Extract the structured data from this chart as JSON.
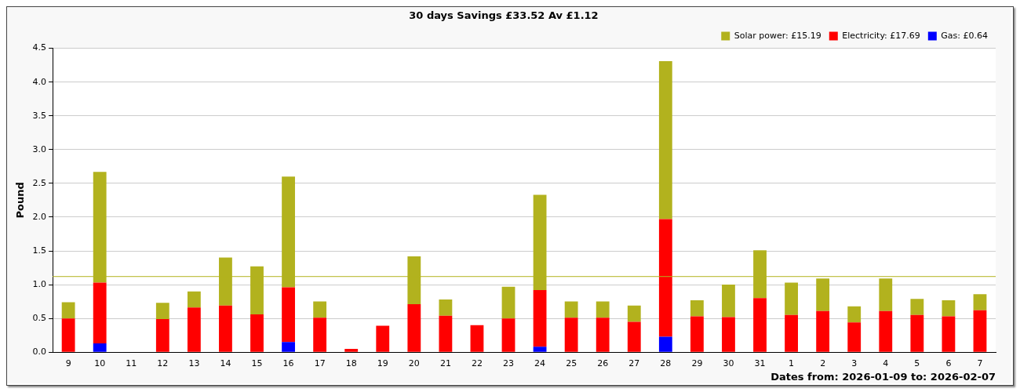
{
  "chart_data": {
    "type": "bar",
    "title": "30 days Savings £33.52 Av £1.12",
    "xlabel": "Dates from: 2026-01-09 to: 2026-02-07",
    "ylabel": "Pound",
    "categories": [
      "9",
      "10",
      "11",
      "12",
      "13",
      "14",
      "15",
      "16",
      "17",
      "18",
      "19",
      "20",
      "21",
      "22",
      "23",
      "24",
      "25",
      "26",
      "27",
      "28",
      "29",
      "30",
      "31",
      "1",
      "2",
      "3",
      "4",
      "5",
      "6",
      "7"
    ],
    "stacked": true,
    "series": [
      {
        "name": "Gas: £0.64",
        "color": "#0000ff",
        "values": [
          0,
          0.13,
          0,
          0,
          0,
          0,
          0,
          0.15,
          0,
          0,
          0,
          0,
          0,
          0,
          0,
          0.08,
          0,
          0,
          0,
          0.23,
          0,
          0,
          0,
          0,
          0,
          0,
          0,
          0,
          0,
          0
        ]
      },
      {
        "name": "Electricity: £17.69",
        "color": "#ff0000",
        "values": [
          0.5,
          0.9,
          0,
          0.49,
          0.66,
          0.69,
          0.56,
          0.81,
          0.51,
          0.05,
          0.39,
          0.71,
          0.54,
          0.4,
          0.5,
          0.84,
          0.51,
          0.51,
          0.45,
          1.74,
          0.53,
          0.52,
          0.8,
          0.55,
          0.61,
          0.44,
          0.61,
          0.55,
          0.53,
          0.62
        ]
      },
      {
        "name": "Solar power: £15.19",
        "color": "#b2b21e",
        "values": [
          0.24,
          1.64,
          0,
          0.24,
          0.24,
          0.71,
          0.71,
          1.64,
          0.24,
          0,
          0,
          0.71,
          0.24,
          0,
          0.47,
          1.41,
          0.24,
          0.24,
          0.24,
          2.34,
          0.24,
          0.48,
          0.71,
          0.48,
          0.48,
          0.24,
          0.48,
          0.24,
          0.24,
          0.24
        ]
      }
    ],
    "ylim": [
      0,
      4.5
    ],
    "yticks": [
      {
        "value": 0,
        "label": "0.0"
      },
      {
        "value": 0.5,
        "label": "0.5"
      },
      {
        "value": 1,
        "label": "1.0"
      },
      {
        "value": 1.5,
        "label": "1.5"
      },
      {
        "value": 2,
        "label": "2.0"
      },
      {
        "value": 2.5,
        "label": "2.5"
      },
      {
        "value": 3,
        "label": "3.0"
      },
      {
        "value": 3.5,
        "label": "3.5"
      },
      {
        "value": 4,
        "label": "4.0"
      },
      {
        "value": 4.5,
        "label": "4.5"
      }
    ],
    "ref_lines": [
      {
        "axis": "y",
        "value": 1.12,
        "color": "#b2b21e"
      }
    ],
    "grid": "y",
    "legend": "top right"
  }
}
